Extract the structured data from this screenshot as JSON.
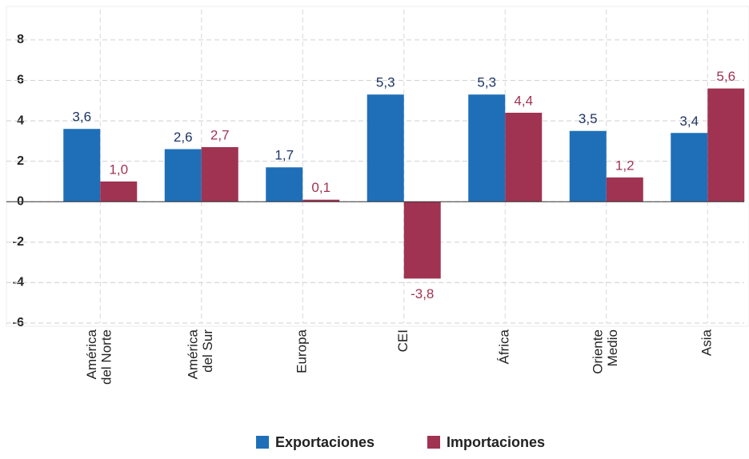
{
  "chart_data": {
    "type": "bar",
    "categories": [
      "América\ndel Norte",
      "América\ndel Sur",
      "Europa",
      "CEI",
      "África",
      "Oriente\nMedio",
      "Asia"
    ],
    "series": [
      {
        "name": "Exportaciones",
        "color": "#1f6fb8",
        "label_color": "#1d3566",
        "values": [
          3.6,
          2.6,
          1.7,
          5.3,
          5.3,
          3.5,
          3.4
        ],
        "value_labels": [
          "3,6",
          "2,6",
          "1,7",
          "5,3",
          "5,3",
          "3,5",
          "3,4"
        ]
      },
      {
        "name": "Importaciones",
        "color": "#a03352",
        "label_color": "#a03352",
        "values": [
          1.0,
          2.7,
          0.1,
          -3.8,
          4.4,
          1.2,
          5.6
        ],
        "value_labels": [
          "1,0",
          "2,7",
          "0,1",
          "-3,8",
          "4,4",
          "1,2",
          "5,6"
        ]
      }
    ],
    "ylim": [
      -6,
      9.5
    ],
    "yticks": [
      -6,
      -4,
      -2,
      0,
      2,
      4,
      6,
      8
    ],
    "grid": true
  }
}
